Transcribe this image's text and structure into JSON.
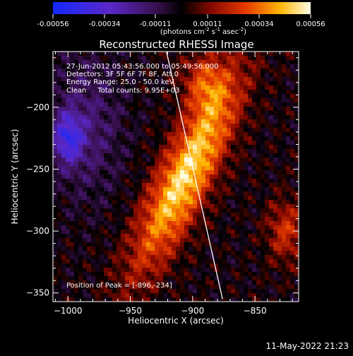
{
  "colorbar": {
    "ticks": [
      "-0.00056",
      "-0.00034",
      "-0.00011",
      "0.00011",
      "0.00034",
      "0.00056"
    ],
    "unit_parts": [
      "(photons cm",
      "-2",
      " s",
      "-1",
      " asec",
      "-2",
      ")"
    ]
  },
  "chart_data": {
    "type": "heatmap",
    "title": "Reconstructed RHESSI Image",
    "xlabel": "Heliocentric X (arcsec)",
    "ylabel": "Heliocentric Y (arcsec)",
    "xlim": [
      -1012,
      -815
    ],
    "ylim": [
      -357,
      -155
    ],
    "xticks": [
      -1000,
      -950,
      -900,
      -850
    ],
    "yticks": [
      -200,
      -250,
      -300,
      -350
    ],
    "colormap": "RHESSI red-temperature (blue to white)",
    "value_range": [
      -0.00056,
      0.00056
    ],
    "annotations": [
      "27-Jun-2012 05:43:56.000 to 05:49:56.000",
      "Detectors: 3F 5F 6F 7F 8F, Att 0",
      "Energy Range: 25.0 - 50.0 keV",
      "Clean     Total counts: 9.95E+03"
    ],
    "peak_label": "Position of Peak = [-896,-234]",
    "peak": [
      -896,
      -234
    ],
    "limb_line": [
      [
        -921,
        -155
      ],
      [
        -876,
        -355
      ]
    ]
  },
  "footer": {
    "date": "11-May-2022 21:23"
  }
}
